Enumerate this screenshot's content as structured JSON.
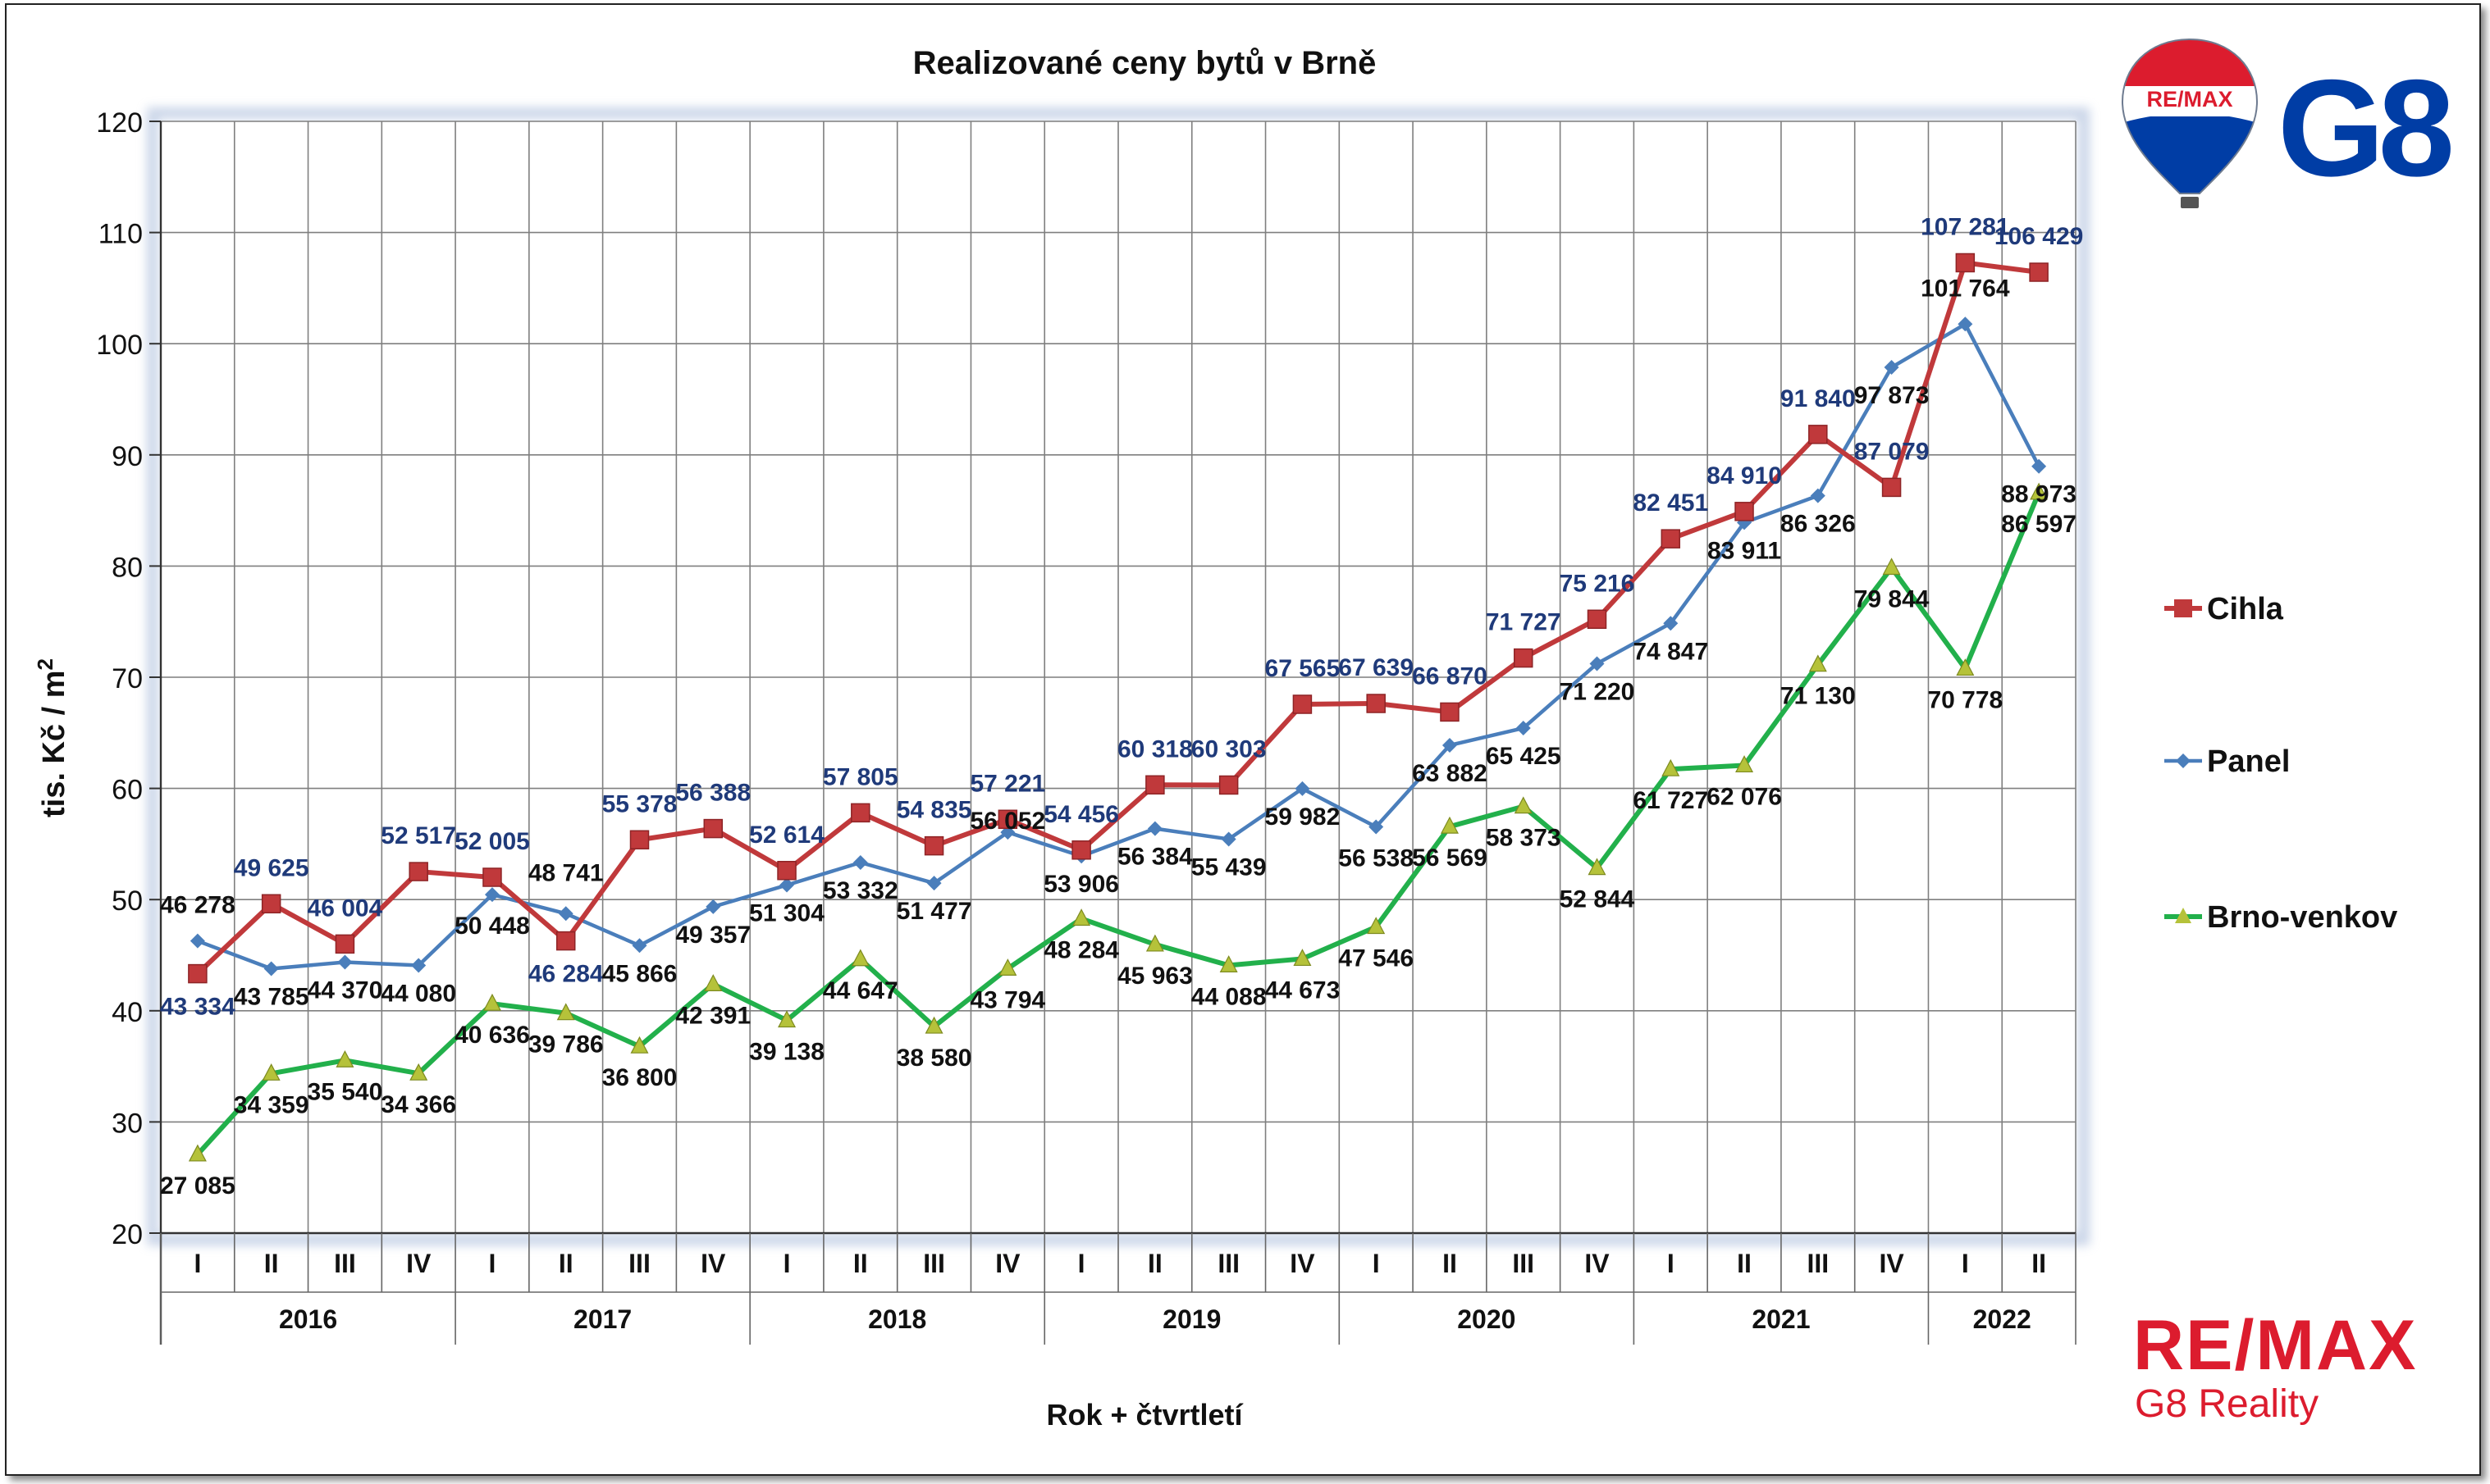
{
  "chart_data": {
    "type": "line",
    "title": "Realizované ceny bytů v Brně",
    "xlabel": "Rok + čtvrtletí",
    "ylabel": "tis. Kč / m²",
    "ylim": [
      20,
      120
    ],
    "yticks": [
      20,
      30,
      40,
      50,
      60,
      70,
      80,
      90,
      100,
      110,
      120
    ],
    "grid": true,
    "legend_position": "right",
    "quarters": [
      "I",
      "II",
      "III",
      "IV",
      "I",
      "II",
      "III",
      "IV",
      "I",
      "II",
      "III",
      "IV",
      "I",
      "II",
      "III",
      "IV",
      "I",
      "II",
      "III",
      "IV",
      "I",
      "II",
      "III",
      "IV",
      "I",
      "II"
    ],
    "years": [
      {
        "label": "2016",
        "count": 4
      },
      {
        "label": "2017",
        "count": 4
      },
      {
        "label": "2018",
        "count": 4
      },
      {
        "label": "2019",
        "count": 4
      },
      {
        "label": "2020",
        "count": 4
      },
      {
        "label": "2021",
        "count": 4
      },
      {
        "label": "2022",
        "count": 2
      }
    ],
    "series": [
      {
        "name": "Cihla",
        "color": "#c0393b",
        "label_color": "#1f3a7a",
        "marker": "square",
        "values": [
          43.334,
          49.625,
          46.004,
          52.517,
          52.005,
          46.284,
          55.378,
          56.388,
          52.614,
          57.805,
          54.835,
          57.221,
          54.456,
          60.318,
          60.303,
          67.565,
          67.639,
          66.87,
          71.727,
          75.216,
          82.451,
          84.91,
          91.84,
          87.079,
          107.281,
          106.429
        ],
        "labels": [
          "43 334",
          "49 625",
          "46 004",
          "52 517",
          "52 005",
          "46 284",
          "55 378",
          "56 388",
          "52 614",
          "57 805",
          "54 835",
          "57 221",
          "54 456",
          "60 318",
          "60 303",
          "67 565",
          "67 639",
          "66 870",
          "71 727",
          "75 216",
          "82 451",
          "84 910",
          "91 840",
          "87 079",
          "107 281",
          "106 429"
        ]
      },
      {
        "name": "Panel",
        "color": "#4a7ebb",
        "label_color": "#111111",
        "marker": "diamond",
        "values": [
          46.278,
          43.785,
          44.37,
          44.08,
          50.448,
          48.741,
          45.866,
          49.357,
          51.304,
          53.332,
          51.477,
          56.052,
          53.906,
          56.384,
          55.439,
          59.982,
          56.538,
          63.882,
          65.425,
          71.22,
          74.847,
          83.911,
          86.326,
          97.873,
          101.764,
          88.973
        ],
        "labels": [
          "46 278",
          "43 785",
          "44 370",
          "44 080",
          "50 448",
          "48 741",
          "45 866",
          "49 357",
          "51 304",
          "53 332",
          "51 477",
          "56 052",
          "53 906",
          "56 384",
          "55 439",
          "59 982",
          "56 538",
          "63 882",
          "65 425",
          "71 220",
          "74 847",
          "83 911",
          "86 326",
          "97 873",
          "101 764",
          "88 973"
        ]
      },
      {
        "name": "Brno-venkov",
        "color": "#22b04b",
        "label_color": "#111111",
        "marker": "triangle",
        "values": [
          27.085,
          34.359,
          35.54,
          34.366,
          40.636,
          39.786,
          36.8,
          42.391,
          39.138,
          44.647,
          38.58,
          43.794,
          48.284,
          45.963,
          44.088,
          44.673,
          47.546,
          56.569,
          58.373,
          52.844,
          61.727,
          62.076,
          71.13,
          79.844,
          70.778,
          86.597
        ],
        "labels": [
          "27 085",
          "34 359",
          "35 540",
          "34 366",
          "40 636",
          "39 786",
          "36 800",
          "42 391",
          "39 138",
          "44 647",
          "38 580",
          "43 794",
          "48 284",
          "45 963",
          "44 088",
          "44 673",
          "47 546",
          "56 569",
          "58 373",
          "52 844",
          "61 727",
          "62 076",
          "71 130",
          "79 844",
          "70 778",
          "86 597"
        ]
      }
    ]
  },
  "branding": {
    "remax_balloon_text": "RE/MAX",
    "g8_text": "G8",
    "remax_text": "RE/MAX",
    "company_text": "G8 Reality",
    "brand_red": "#dc1c2e",
    "brand_blue": "#003da5"
  }
}
